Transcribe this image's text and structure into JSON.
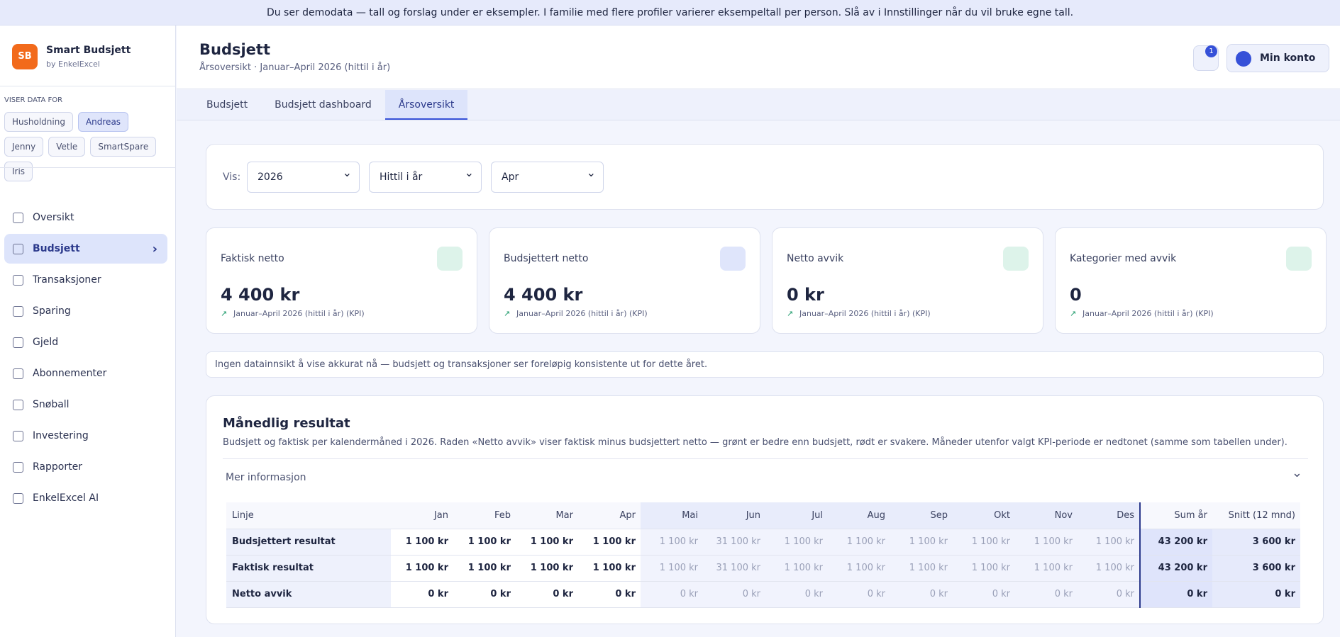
{
  "banner": "Du ser demodata — tall og forslag under er eksempler. I familie med flere profiler varierer eksempeltall per person. Slå av i Innstillinger når du vil bruke egne tall.",
  "sidebar": {
    "initials": "SB",
    "name": "Smart Budsjett",
    "by": "by EnkelExcel",
    "viewing_label": "VISER DATA FOR",
    "profiles": [
      "Husholdning",
      "Andreas",
      "Jenny",
      "Vetle",
      "SmartSpare",
      "Iris"
    ],
    "nav": [
      "Oversikt",
      "Budsjett",
      "Transaksjoner",
      "Sparing",
      "Gjeld",
      "Abonnementer",
      "Snøball",
      "Investering",
      "Rapporter",
      "EnkelExcel AI"
    ]
  },
  "header": {
    "title": "Budsjett",
    "subtitle": "Årsoversikt · Januar–April 2026 (hittil i år)",
    "notifications": 1,
    "account": "Min konto"
  },
  "tabs": [
    "Budsjett",
    "Budsjett dashboard",
    "Årsoversikt"
  ],
  "filters": {
    "label": "Vis:",
    "selects": [
      "2026",
      "Hittil i år",
      "Apr"
    ]
  },
  "kpis": [
    {
      "title": "Faktisk netto",
      "value": "4 400 kr",
      "note": "Januar–April 2026 (hittil i år) (KPI)"
    },
    {
      "title": "Budsjettert netto",
      "value": "4 400 kr",
      "note": "Januar–April 2026 (hittil i år) (KPI)"
    },
    {
      "title": "Netto avvik",
      "value": "0 kr",
      "note": "Januar–April 2026 (hittil i år) (KPI)"
    },
    {
      "title": "Kategorier med avvik",
      "value": "0",
      "note": "Januar–April 2026 (hittil i år) (KPI)"
    }
  ],
  "info": "Ingen datainnsikt å vise akkurat nå — budsjett og transaksjoner ser foreløpig konsistente ut for dette året.",
  "monthly": {
    "title": "Månedlig resultat",
    "description": "Budsjett og faktisk per kalendermåned i 2026. Raden «Netto avvik» viser faktisk minus budsjettert netto — grønt er bedre enn budsjett, rødt er svakere. Måneder utenfor valgt KPI-periode er nedtonet (samme som tabellen under).",
    "more": "Mer informasjon",
    "columns": [
      "Linje",
      "Jan",
      "Feb",
      "Mar",
      "Apr",
      "Mai",
      "Jun",
      "Jul",
      "Aug",
      "Sep",
      "Okt",
      "Nov",
      "Des",
      "Sum år",
      "Snitt (12 mnd)"
    ],
    "rows": [
      [
        "Budsjettert resultat",
        "1 100 kr",
        "1 100 kr",
        "1 100 kr",
        "1 100 kr",
        "1 100 kr",
        "31 100 kr",
        "1 100 kr",
        "1 100 kr",
        "1 100 kr",
        "1 100 kr",
        "1 100 kr",
        "1 100 kr",
        "43 200 kr",
        "3 600 kr"
      ],
      [
        "Faktisk resultat",
        "1 100 kr",
        "1 100 kr",
        "1 100 kr",
        "1 100 kr",
        "1 100 kr",
        "31 100 kr",
        "1 100 kr",
        "1 100 kr",
        "1 100 kr",
        "1 100 kr",
        "1 100 kr",
        "1 100 kr",
        "43 200 kr",
        "3 600 kr"
      ],
      [
        "Netto avvik",
        "0 kr",
        "0 kr",
        "0 kr",
        "0 kr",
        "0 kr",
        "0 kr",
        "0 kr",
        "0 kr",
        "0 kr",
        "0 kr",
        "0 kr",
        "0 kr",
        "0 kr",
        "0 kr"
      ]
    ]
  }
}
